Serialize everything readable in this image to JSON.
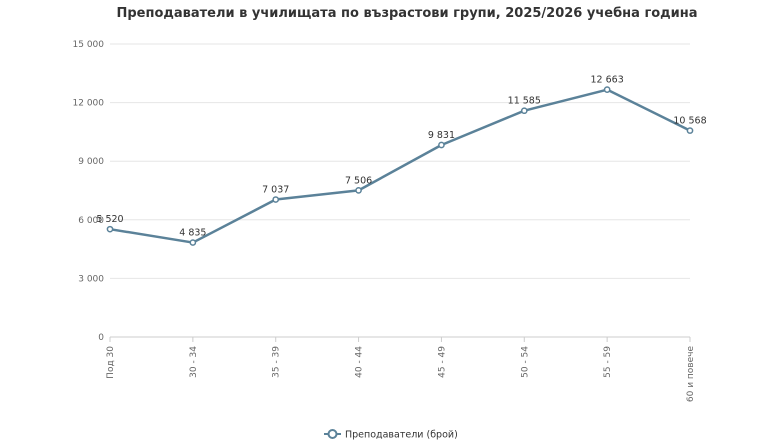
{
  "chart_data": {
    "type": "line",
    "title": "Преподаватели в училищата по възрастови групи, 2025/2026 учебна година",
    "categories": [
      "Под 30",
      "30 - 34",
      "35 - 39",
      "40 - 44",
      "45 - 49",
      "50 - 54",
      "55 - 59",
      "60 и повече"
    ],
    "series": [
      {
        "name": "Преподаватели (брой)",
        "values": [
          5520,
          4835,
          7037,
          7506,
          9831,
          11585,
          12663,
          10568
        ],
        "labels": [
          "5 520",
          "4 835",
          "7 037",
          "7 506",
          "9 831",
          "11 585",
          "12 663",
          "10 568"
        ],
        "color": "#5b8299"
      }
    ],
    "ylim": [
      0,
      15000
    ],
    "yticks": [
      0,
      3000,
      6000,
      9000,
      12000,
      15000
    ],
    "ytick_labels": [
      "0",
      "3 000",
      "6 000",
      "9 000",
      "12 000",
      "15 000"
    ],
    "xlabel": "",
    "ylabel": "",
    "grid": true,
    "legend_position": "bottom-center"
  }
}
